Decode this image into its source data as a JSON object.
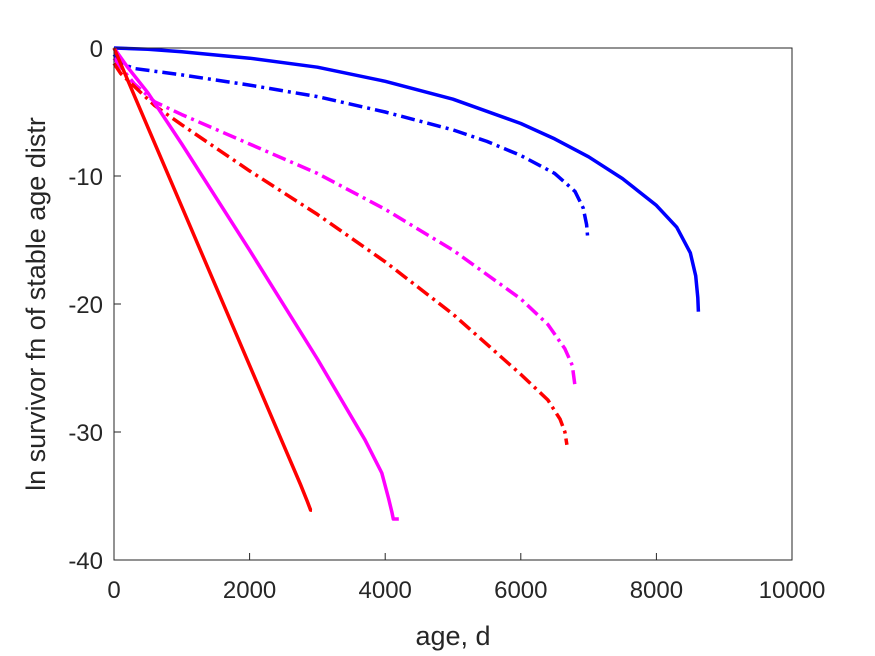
{
  "chart_data": {
    "type": "line",
    "xlabel": "age, d",
    "ylabel": "ln survivor fn of stable age distr",
    "xlim": [
      0,
      10000
    ],
    "ylim": [
      -40,
      0
    ],
    "xticks": [
      0,
      2000,
      4000,
      6000,
      8000,
      10000
    ],
    "yticks": [
      -40,
      -30,
      -20,
      -10,
      0
    ],
    "grid": false,
    "legend": "none",
    "series": [
      {
        "color": "#0000ff",
        "dash": "solid",
        "points": [
          [
            0,
            0
          ],
          [
            500,
            -0.1
          ],
          [
            1000,
            -0.3
          ],
          [
            2000,
            -0.8
          ],
          [
            3000,
            -1.5
          ],
          [
            4000,
            -2.6
          ],
          [
            5000,
            -4.0
          ],
          [
            6000,
            -5.9
          ],
          [
            6500,
            -7.1
          ],
          [
            7000,
            -8.5
          ],
          [
            7500,
            -10.2
          ],
          [
            8000,
            -12.3
          ],
          [
            8300,
            -14.0
          ],
          [
            8500,
            -16.0
          ],
          [
            8580,
            -17.8
          ],
          [
            8610,
            -19.5
          ],
          [
            8620,
            -20.6
          ]
        ]
      },
      {
        "color": "#0000ff",
        "dash": "dashdot",
        "points": [
          [
            0,
            -0.5
          ],
          [
            100,
            -1.2
          ],
          [
            300,
            -1.6
          ],
          [
            1000,
            -2.1
          ],
          [
            2000,
            -2.9
          ],
          [
            3000,
            -3.8
          ],
          [
            4000,
            -5.0
          ],
          [
            5000,
            -6.4
          ],
          [
            5500,
            -7.3
          ],
          [
            6000,
            -8.4
          ],
          [
            6500,
            -9.8
          ],
          [
            6800,
            -11.2
          ],
          [
            6920,
            -12.5
          ],
          [
            6970,
            -13.8
          ],
          [
            6990,
            -15.0
          ]
        ]
      },
      {
        "color": "#ff00ff",
        "dash": "dashdot",
        "points": [
          [
            0,
            -0.8
          ],
          [
            100,
            -1.5
          ],
          [
            300,
            -2.8
          ],
          [
            600,
            -4.2
          ],
          [
            1000,
            -5.2
          ],
          [
            2000,
            -7.5
          ],
          [
            3000,
            -9.8
          ],
          [
            4000,
            -12.6
          ],
          [
            5000,
            -15.8
          ],
          [
            6000,
            -19.6
          ],
          [
            6400,
            -21.6
          ],
          [
            6650,
            -23.5
          ],
          [
            6760,
            -24.8
          ],
          [
            6800,
            -26.4
          ]
        ]
      },
      {
        "color": "#ff0000",
        "dash": "dashdot",
        "points": [
          [
            0,
            -1.2
          ],
          [
            100,
            -2.0
          ],
          [
            300,
            -3.0
          ],
          [
            600,
            -4.5
          ],
          [
            1000,
            -6.0
          ],
          [
            2000,
            -9.6
          ],
          [
            3000,
            -13.0
          ],
          [
            4000,
            -16.7
          ],
          [
            5000,
            -20.8
          ],
          [
            6000,
            -25.5
          ],
          [
            6400,
            -27.5
          ],
          [
            6580,
            -29.0
          ],
          [
            6650,
            -30.0
          ],
          [
            6680,
            -31.0
          ]
        ]
      },
      {
        "color": "#ff00ff",
        "dash": "solid",
        "points": [
          [
            0,
            0
          ],
          [
            200,
            -1.5
          ],
          [
            500,
            -3.5
          ],
          [
            1000,
            -7.5
          ],
          [
            2000,
            -15.8
          ],
          [
            3000,
            -24.3
          ],
          [
            3700,
            -30.6
          ],
          [
            3950,
            -33.2
          ],
          [
            4050,
            -35.2
          ],
          [
            4100,
            -36.3
          ],
          [
            4120,
            -36.8
          ],
          [
            4200,
            -36.8
          ]
        ]
      },
      {
        "color": "#ff0000",
        "dash": "solid",
        "points": [
          [
            0,
            0
          ],
          [
            500,
            -6.2
          ],
          [
            1000,
            -12.4
          ],
          [
            1500,
            -18.6
          ],
          [
            2000,
            -24.8
          ],
          [
            2500,
            -31.0
          ],
          [
            2750,
            -34.1
          ],
          [
            2850,
            -35.4
          ],
          [
            2900,
            -36.1
          ],
          [
            2920,
            -36.1
          ]
        ]
      }
    ]
  }
}
